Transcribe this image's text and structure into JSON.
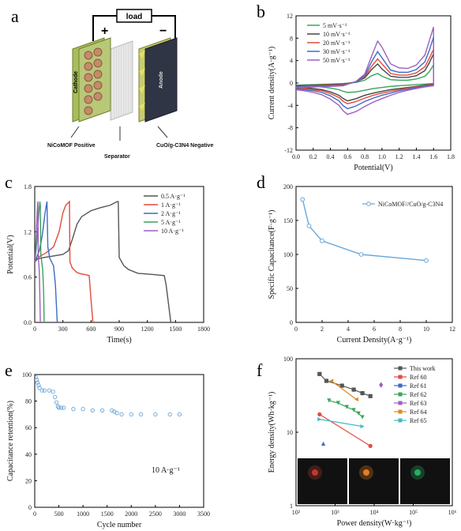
{
  "panel_a": {
    "letter": "a",
    "load_label": "load",
    "plus": "+",
    "minus": "−",
    "cathode": "Cathode",
    "anode": "Anode",
    "positive_label": "NiCoMOF Positive",
    "separator_label": "Separator",
    "negative_label": "CuO/g-C3N4 Negative"
  },
  "chart_data": [
    {
      "id": "b",
      "type": "line",
      "letter": "b",
      "xlabel": "Potential(V)",
      "ylabel": "Current density(A·g⁻¹)",
      "xlim": [
        0.0,
        1.8
      ],
      "ylim": [
        -12,
        12
      ],
      "xticks": [
        "0.0",
        "0.2",
        "0.4",
        "0.6",
        "0.8",
        "1.0",
        "1.2",
        "1.4",
        "1.6",
        "1.8"
      ],
      "yticks": [
        "-12",
        "-8",
        "-4",
        "0",
        "4",
        "8",
        "12"
      ],
      "legend_position": "top-left",
      "series": [
        {
          "name": "5 mV·s⁻¹",
          "color": "#3aa45a",
          "x": [
            0.0,
            0.2,
            0.4,
            0.55,
            0.7,
            0.8,
            0.88,
            0.95,
            1.0,
            1.1,
            1.2,
            1.3,
            1.4,
            1.5,
            1.55,
            1.6,
            1.6,
            1.5,
            1.4,
            1.3,
            1.2,
            1.1,
            1.0,
            0.9,
            0.8,
            0.7,
            0.6,
            0.55,
            0.5,
            0.4,
            0.3,
            0.2,
            0.1,
            0.0
          ],
          "y": [
            -0.4,
            -0.3,
            -0.2,
            -0.1,
            0.1,
            0.5,
            1.3,
            1.7,
            1.2,
            0.6,
            0.5,
            0.5,
            0.7,
            1.2,
            2.0,
            3.2,
            -0.1,
            -0.2,
            -0.3,
            -0.4,
            -0.5,
            -0.6,
            -0.8,
            -1.0,
            -1.3,
            -1.6,
            -1.7,
            -1.5,
            -1.2,
            -0.9,
            -0.7,
            -0.6,
            -0.5,
            -0.5
          ]
        },
        {
          "name": "10 mV·s⁻¹",
          "color": "#444444",
          "x": [
            0.0,
            0.2,
            0.4,
            0.55,
            0.7,
            0.8,
            0.88,
            0.95,
            1.0,
            1.1,
            1.2,
            1.3,
            1.4,
            1.5,
            1.55,
            1.6,
            1.6,
            1.5,
            1.4,
            1.3,
            1.2,
            1.1,
            1.0,
            0.9,
            0.8,
            0.7,
            0.6,
            0.55,
            0.5,
            0.4,
            0.3,
            0.2,
            0.1,
            0.0
          ],
          "y": [
            -0.5,
            -0.4,
            -0.3,
            -0.2,
            0.2,
            0.9,
            2.4,
            3.4,
            2.5,
            1.2,
            1.0,
            1.0,
            1.3,
            2.2,
            3.6,
            5.2,
            -0.2,
            -0.4,
            -0.6,
            -0.8,
            -1.0,
            -1.2,
            -1.5,
            -1.8,
            -2.2,
            -2.8,
            -3.2,
            -2.8,
            -2.2,
            -1.6,
            -1.2,
            -1.0,
            -0.8,
            -0.7
          ]
        },
        {
          "name": "20 mV·s⁻¹",
          "color": "#e34a3c",
          "x": [
            0.0,
            0.2,
            0.4,
            0.55,
            0.7,
            0.8,
            0.88,
            0.95,
            1.0,
            1.1,
            1.2,
            1.3,
            1.4,
            1.5,
            1.55,
            1.6,
            1.6,
            1.5,
            1.4,
            1.3,
            1.2,
            1.1,
            1.0,
            0.9,
            0.8,
            0.7,
            0.6,
            0.55,
            0.5,
            0.4,
            0.3,
            0.2,
            0.1,
            0.0
          ],
          "y": [
            -0.6,
            -0.5,
            -0.4,
            -0.3,
            0.2,
            1.1,
            3.0,
            4.3,
            3.4,
            1.7,
            1.4,
            1.4,
            1.8,
            2.9,
            4.4,
            6.0,
            -0.3,
            -0.5,
            -0.7,
            -0.9,
            -1.2,
            -1.5,
            -1.8,
            -2.2,
            -2.7,
            -3.3,
            -3.7,
            -3.3,
            -2.6,
            -1.9,
            -1.4,
            -1.2,
            -1.0,
            -0.9
          ]
        },
        {
          "name": "30 mV·s⁻¹",
          "color": "#3d6bc4",
          "x": [
            0.0,
            0.2,
            0.4,
            0.55,
            0.7,
            0.8,
            0.88,
            0.95,
            1.0,
            1.1,
            1.2,
            1.3,
            1.4,
            1.5,
            1.55,
            1.6,
            1.6,
            1.5,
            1.4,
            1.3,
            1.2,
            1.1,
            1.0,
            0.9,
            0.8,
            0.7,
            0.6,
            0.55,
            0.5,
            0.4,
            0.3,
            0.2,
            0.1,
            0.0
          ],
          "y": [
            -0.7,
            -0.6,
            -0.5,
            -0.4,
            0.2,
            1.3,
            3.8,
            5.6,
            4.5,
            2.3,
            1.9,
            1.9,
            2.4,
            3.8,
            5.8,
            8.2,
            -0.4,
            -0.6,
            -0.8,
            -1.1,
            -1.4,
            -1.8,
            -2.2,
            -2.7,
            -3.3,
            -4.1,
            -4.6,
            -4.1,
            -3.2,
            -2.3,
            -1.7,
            -1.4,
            -1.2,
            -1.0
          ]
        },
        {
          "name": "50 mV·s⁻¹",
          "color": "#9d5fc0",
          "x": [
            0.0,
            0.2,
            0.4,
            0.55,
            0.7,
            0.8,
            0.88,
            0.95,
            1.0,
            1.1,
            1.2,
            1.3,
            1.4,
            1.5,
            1.55,
            1.6,
            1.6,
            1.5,
            1.4,
            1.3,
            1.2,
            1.1,
            1.0,
            0.9,
            0.8,
            0.7,
            0.6,
            0.55,
            0.5,
            0.4,
            0.3,
            0.2,
            0.1,
            0.0
          ],
          "y": [
            -0.8,
            -0.7,
            -0.6,
            -0.5,
            0.3,
            1.6,
            4.8,
            7.5,
            6.4,
            3.4,
            2.7,
            2.6,
            3.2,
            5.0,
            7.5,
            10.0,
            -0.5,
            -0.7,
            -1.0,
            -1.3,
            -1.7,
            -2.2,
            -2.8,
            -3.4,
            -4.2,
            -5.1,
            -5.6,
            -5.0,
            -4.0,
            -2.9,
            -2.1,
            -1.7,
            -1.4,
            -1.2
          ]
        }
      ]
    },
    {
      "id": "c",
      "type": "line",
      "letter": "c",
      "xlabel": "Time(s)",
      "ylabel": "Potential(V)",
      "xlim": [
        0,
        1800
      ],
      "ylim": [
        0.0,
        1.8
      ],
      "xticks": [
        "0",
        "300",
        "600",
        "900",
        "1200",
        "1500",
        "1800"
      ],
      "yticks": [
        "0.0",
        "0.6",
        "1.2",
        "1.8"
      ],
      "legend_position": "top-right",
      "series": [
        {
          "name": "0.5 A·g⁻¹",
          "color": "#555555",
          "x": [
            0,
            30,
            100,
            200,
            300,
            360,
            400,
            450,
            500,
            600,
            700,
            800,
            880,
            890,
            900,
            950,
            1000,
            1100,
            1200,
            1300,
            1380,
            1400,
            1430,
            1450
          ],
          "y": [
            0.8,
            0.84,
            0.86,
            0.88,
            0.9,
            0.95,
            1.1,
            1.3,
            1.4,
            1.48,
            1.52,
            1.55,
            1.6,
            1.6,
            0.86,
            0.75,
            0.7,
            0.65,
            0.64,
            0.63,
            0.62,
            0.5,
            0.2,
            0.0
          ]
        },
        {
          "name": "1 A·g⁻¹",
          "color": "#e34a3c",
          "x": [
            0,
            20,
            60,
            120,
            200,
            260,
            300,
            330,
            370,
            375,
            400,
            450,
            500,
            550,
            580,
            600,
            620
          ],
          "y": [
            0.8,
            0.84,
            0.88,
            0.92,
            1.0,
            1.2,
            1.45,
            1.55,
            1.6,
            0.8,
            0.72,
            0.66,
            0.64,
            0.63,
            0.62,
            0.3,
            0.0
          ]
        },
        {
          "name": "2 A·g⁻¹",
          "color": "#3d6bc4",
          "x": [
            0,
            20,
            50,
            80,
            110,
            130,
            140,
            160,
            180,
            200,
            220,
            240
          ],
          "y": [
            0.8,
            0.86,
            0.95,
            1.15,
            1.45,
            1.6,
            1.0,
            0.85,
            0.8,
            0.75,
            0.5,
            0.0
          ]
        },
        {
          "name": "5 A·g⁻¹",
          "color": "#3aa45a",
          "x": [
            0,
            10,
            25,
            40,
            55,
            60,
            65,
            75,
            85,
            95,
            100
          ],
          "y": [
            0.8,
            0.9,
            1.1,
            1.4,
            1.6,
            1.55,
            0.9,
            0.8,
            0.7,
            0.4,
            0.0
          ]
        },
        {
          "name": "10 A·g⁻¹",
          "color": "#9d5fc0",
          "x": [
            0,
            8,
            18,
            28,
            34,
            38,
            42,
            48,
            54,
            60
          ],
          "y": [
            0.8,
            0.95,
            1.2,
            1.5,
            1.6,
            0.9,
            0.8,
            0.7,
            0.4,
            0.0
          ]
        }
      ]
    },
    {
      "id": "d",
      "type": "line",
      "letter": "d",
      "xlabel": "Current Density(A·g⁻¹)",
      "ylabel": "Specific Capacitance(F·g⁻¹)",
      "xlim": [
        0,
        12
      ],
      "ylim": [
        0,
        200
      ],
      "xticks": [
        "0",
        "2",
        "4",
        "6",
        "8",
        "10",
        "12"
      ],
      "yticks": [
        "0",
        "50",
        "100",
        "150",
        "200"
      ],
      "legend_position": "top-right",
      "series": [
        {
          "name": "NiCoMOF//CuO/g-C3N4",
          "color": "#6aa6d8",
          "x": [
            0.5,
            1,
            2,
            5,
            10
          ],
          "y": [
            181,
            142,
            120,
            100,
            91
          ]
        }
      ]
    },
    {
      "id": "e",
      "type": "scatter",
      "letter": "e",
      "xlabel": "Cycle number",
      "ylabel": "Capacitance retention(%)",
      "xlim": [
        0,
        3500
      ],
      "ylim": [
        0,
        100
      ],
      "xticks": [
        "0",
        "500",
        "1000",
        "1500",
        "2000",
        "2500",
        "3000",
        "3500"
      ],
      "yticks": [
        "0",
        "20",
        "40",
        "60",
        "80",
        "100"
      ],
      "annotation": "10 A·g⁻¹",
      "series": [
        {
          "name": "retention",
          "color": "#6aa6d8",
          "x": [
            0,
            20,
            40,
            60,
            80,
            100,
            150,
            200,
            300,
            380,
            420,
            450,
            480,
            500,
            550,
            600,
            800,
            1000,
            1200,
            1400,
            1600,
            1650,
            1700,
            1800,
            2000,
            2200,
            2500,
            2800,
            3000
          ],
          "y": [
            100,
            98,
            96,
            94,
            92,
            90,
            88,
            88,
            88,
            87,
            83,
            79,
            76,
            75,
            75,
            75,
            74,
            74,
            73,
            73,
            73,
            72,
            71,
            70,
            70,
            70,
            70,
            70,
            70
          ]
        }
      ]
    },
    {
      "id": "f",
      "type": "scatter",
      "letter": "f",
      "xlabel": "Power density(W·kg⁻¹)",
      "ylabel": "Energy density(Wh·kg⁻¹)",
      "xscale": "log",
      "yscale": "log",
      "xlim": [
        100,
        1000000
      ],
      "ylim": [
        1,
        100
      ],
      "xticks": [
        "10²",
        "10³",
        "10⁴",
        "10⁵",
        "10⁶"
      ],
      "yticks": [
        "1",
        "10",
        "100"
      ],
      "legend_position": "top-right",
      "series": [
        {
          "name": "This work",
          "color": "#555555",
          "marker": "square",
          "x": [
            400,
            600,
            1500,
            3000,
            5000,
            8000
          ],
          "y": [
            62,
            50,
            43,
            38,
            34,
            31
          ]
        },
        {
          "name": "Ref 60",
          "color": "#e34a3c",
          "marker": "circle",
          "x": [
            400,
            8000
          ],
          "y": [
            17.5,
            6.5
          ]
        },
        {
          "name": "Ref 61",
          "color": "#3d6bc4",
          "marker": "triangle",
          "x": [
            500
          ],
          "y": [
            7
          ]
        },
        {
          "name": "Ref 62",
          "color": "#3aa45a",
          "marker": "triangle-down",
          "x": [
            700,
            1200,
            2000,
            3000,
            4000,
            5000
          ],
          "y": [
            27,
            25,
            22,
            20,
            18,
            16
          ]
        },
        {
          "name": "Ref 63",
          "color": "#9d5fc0",
          "marker": "diamond",
          "x": [
            15000
          ],
          "y": [
            44
          ]
        },
        {
          "name": "Ref 64",
          "color": "#e08a1e",
          "marker": "triangle-left",
          "x": [
            800,
            3500
          ],
          "y": [
            50,
            28
          ]
        },
        {
          "name": "Ref 65",
          "color": "#3dbdc4",
          "marker": "triangle-right",
          "x": [
            400,
            5000
          ],
          "y": [
            15,
            12
          ]
        }
      ]
    }
  ]
}
